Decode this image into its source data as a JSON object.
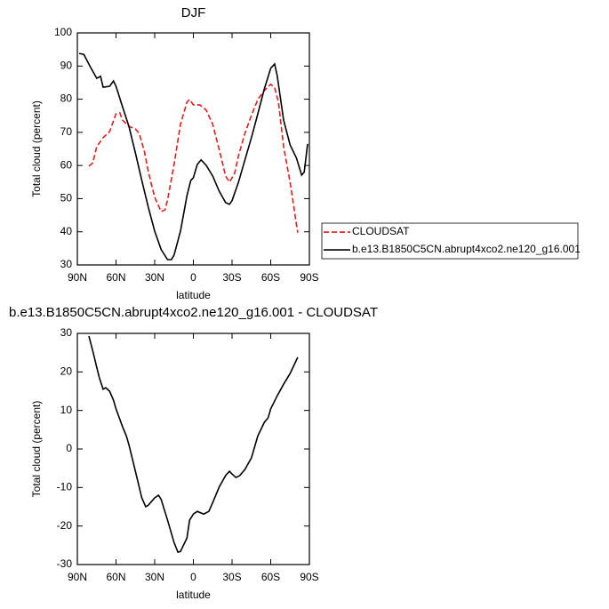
{
  "chart_data": [
    {
      "type": "line",
      "title": "DJF",
      "x_label": "latitude",
      "y_label": "Total cloud (percent)",
      "xlim": [
        90,
        -90
      ],
      "ylim": [
        30,
        100
      ],
      "xticks": [
        {
          "value": 90,
          "label": "90N"
        },
        {
          "value": 60,
          "label": "60N"
        },
        {
          "value": 30,
          "label": "30N"
        },
        0,
        {
          "value": -30,
          "label": "30S"
        },
        {
          "value": -60,
          "label": "60S"
        },
        {
          "value": -90,
          "label": "90S"
        }
      ],
      "yticks": [
        30,
        40,
        50,
        60,
        70,
        80,
        90,
        100
      ],
      "legend": "right",
      "series": [
        {
          "name": "CLOUDSAT",
          "color": "#e41a1c",
          "dash": "dashed",
          "x": [
            81,
            78,
            75,
            70,
            65,
            60,
            57,
            55,
            50,
            45,
            42,
            38,
            35,
            30,
            25,
            22,
            20,
            15,
            10,
            5,
            3,
            0,
            -5,
            -10,
            -15,
            -20,
            -25,
            -28,
            -32,
            -35,
            -40,
            -45,
            -50,
            -55,
            -60,
            -63,
            -66,
            -70,
            -75,
            -81
          ],
          "values": [
            59.8,
            60.8,
            65.7,
            68.4,
            70.2,
            75.6,
            75.9,
            73.7,
            71.8,
            71,
            69.7,
            64.3,
            58.2,
            50.4,
            46.1,
            46.6,
            49.6,
            60.3,
            72.4,
            79.1,
            79.9,
            78.3,
            78.3,
            76.7,
            72.4,
            64.9,
            56.8,
            55,
            57.6,
            63,
            69.7,
            75.1,
            79.9,
            82.6,
            84.5,
            83.6,
            79.1,
            65.7,
            55,
            39.7
          ]
        },
        {
          "name": "b.e13.B1850C5CN.abrupt4xco2.ne120_g16.001",
          "color": "#000000",
          "dash": "solid",
          "x": [
            88.6,
            85,
            80,
            75,
            72,
            70,
            65,
            62,
            60,
            55,
            50,
            45,
            40,
            35,
            30,
            25,
            20,
            17,
            15,
            10,
            5,
            2,
            0,
            -3,
            -6,
            -10,
            -15,
            -20,
            -25,
            -28,
            -30,
            -35,
            -40,
            -45,
            -50,
            -55,
            -60,
            -63,
            -65,
            -70,
            -75,
            -80,
            -84,
            -86,
            -88.6
          ],
          "values": [
            93.8,
            93.5,
            89.8,
            86.3,
            86.9,
            83.6,
            83.9,
            85.5,
            83.9,
            77.7,
            71.8,
            63.8,
            55.5,
            47.4,
            40.2,
            34.6,
            31.6,
            31.6,
            33,
            40.2,
            50.9,
            55.5,
            56.3,
            60.3,
            61.7,
            60,
            56.8,
            52.3,
            48.8,
            48.3,
            49.4,
            55,
            61.7,
            68.4,
            75.6,
            83.1,
            89.3,
            90.6,
            87.1,
            73.7,
            66.2,
            62.2,
            57.1,
            58,
            66.5
          ]
        }
      ]
    },
    {
      "type": "line",
      "title": "b.e13.B1850C5CN.abrupt4xco2.ne120_g16.001 - CLOUDSAT",
      "x_label": "latitude",
      "y_label": "Total cloud (percent)",
      "xlim": [
        90,
        -90
      ],
      "ylim": [
        -30,
        30
      ],
      "xticks": [
        {
          "value": 90,
          "label": "90N"
        },
        {
          "value": 60,
          "label": "60N"
        },
        {
          "value": 30,
          "label": "30N"
        },
        0,
        {
          "value": -30,
          "label": "30S"
        },
        {
          "value": -60,
          "label": "60S"
        },
        {
          "value": -90,
          "label": "90S"
        }
      ],
      "yticks": [
        -30,
        -20,
        -10,
        0,
        10,
        20,
        30
      ],
      "color": "#000000",
      "x": [
        81,
        78,
        75,
        73,
        70,
        68,
        65,
        62,
        60,
        55,
        52,
        50,
        45,
        40,
        37,
        35,
        30,
        27,
        25,
        20,
        15,
        12,
        10,
        5,
        3,
        0,
        -3,
        -8,
        -12,
        -15,
        -20,
        -25,
        -28,
        -30,
        -33,
        -36,
        -40,
        -45,
        -50,
        -55,
        -58,
        -60,
        -65,
        -70,
        -75,
        -81
      ],
      "values": [
        29.3,
        25.4,
        21.2,
        18.5,
        15.5,
        15.9,
        15,
        12.7,
        10.4,
        5.8,
        3.4,
        1.1,
        -5.8,
        -12.7,
        -15,
        -14.6,
        -12.7,
        -12,
        -13.1,
        -18.5,
        -24.3,
        -26.8,
        -26.6,
        -23.1,
        -18.5,
        -16.9,
        -16.2,
        -16.9,
        -16.2,
        -13.9,
        -9.9,
        -6.9,
        -5.8,
        -6.5,
        -7.4,
        -6.9,
        -5.3,
        -2.3,
        3.4,
        6.9,
        8.1,
        10.4,
        13.8,
        16.8,
        19.6,
        23.8
      ]
    }
  ]
}
